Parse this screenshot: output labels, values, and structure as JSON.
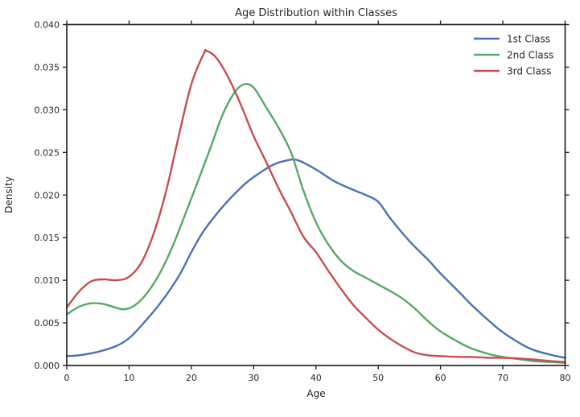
{
  "title": "Age Distribution within Classes",
  "axes": {
    "x_label": "Age",
    "y_label": "Density",
    "x_ticks": [
      "0",
      "10",
      "20",
      "30",
      "40",
      "50",
      "60",
      "70",
      "80"
    ],
    "y_ticks": [
      "0.000",
      "0.005",
      "0.010",
      "0.015",
      "0.020",
      "0.025",
      "0.030",
      "0.035",
      "0.040"
    ]
  },
  "style": {
    "spine_color": "#262626",
    "text_color": "#262626",
    "background": "#ffffff"
  },
  "legend": {
    "entries": [
      "1st Class",
      "2nd Class",
      "3rd Class"
    ]
  },
  "chart_data": {
    "type": "line",
    "title": "Age Distribution within Classes",
    "xlabel": "Age",
    "ylabel": "Density",
    "xlim": [
      0,
      80
    ],
    "ylim": [
      0.0,
      0.04
    ],
    "x_tick_step": 10,
    "y_tick_step": 0.005,
    "grid": false,
    "legend_position": "upper right inside, no frame",
    "curve_kind": "kde-density",
    "series": [
      {
        "name": "1st Class",
        "color": "#4C72B0",
        "points": [
          [
            0,
            0.0011
          ],
          [
            2,
            0.0012
          ],
          [
            5,
            0.0016
          ],
          [
            8,
            0.0023
          ],
          [
            10,
            0.0032
          ],
          [
            12,
            0.0047
          ],
          [
            15,
            0.0073
          ],
          [
            18,
            0.0105
          ],
          [
            20,
            0.0133
          ],
          [
            22,
            0.0158
          ],
          [
            25,
            0.0186
          ],
          [
            28,
            0.0209
          ],
          [
            30,
            0.0221
          ],
          [
            33,
            0.0235
          ],
          [
            35,
            0.024
          ],
          [
            37,
            0.0241
          ],
          [
            40,
            0.023
          ],
          [
            43,
            0.0216
          ],
          [
            46,
            0.0206
          ],
          [
            48,
            0.02
          ],
          [
            50,
            0.0192
          ],
          [
            52,
            0.0172
          ],
          [
            55,
            0.0146
          ],
          [
            58,
            0.0124
          ],
          [
            60,
            0.0108
          ],
          [
            63,
            0.0086
          ],
          [
            65,
            0.0071
          ],
          [
            68,
            0.0051
          ],
          [
            70,
            0.0039
          ],
          [
            73,
            0.0025
          ],
          [
            75,
            0.0018
          ],
          [
            78,
            0.0012
          ],
          [
            80,
            0.0009
          ]
        ]
      },
      {
        "name": "2nd Class",
        "color": "#55A868",
        "points": [
          [
            0,
            0.006
          ],
          [
            2,
            0.0069
          ],
          [
            4,
            0.0073
          ],
          [
            6,
            0.0072
          ],
          [
            9,
            0.0066
          ],
          [
            11,
            0.0071
          ],
          [
            13,
            0.0086
          ],
          [
            15,
            0.0109
          ],
          [
            17,
            0.014
          ],
          [
            20,
            0.0196
          ],
          [
            23,
            0.0254
          ],
          [
            25,
            0.0294
          ],
          [
            27,
            0.0321
          ],
          [
            28.5,
            0.033
          ],
          [
            30,
            0.0326
          ],
          [
            32,
            0.0303
          ],
          [
            34,
            0.0279
          ],
          [
            36,
            0.025
          ],
          [
            38,
            0.0205
          ],
          [
            40,
            0.0168
          ],
          [
            42,
            0.0142
          ],
          [
            44,
            0.0123
          ],
          [
            46,
            0.0111
          ],
          [
            48,
            0.0103
          ],
          [
            50,
            0.0095
          ],
          [
            52,
            0.0087
          ],
          [
            54,
            0.0078
          ],
          [
            56,
            0.0066
          ],
          [
            58,
            0.0052
          ],
          [
            60,
            0.004
          ],
          [
            63,
            0.0027
          ],
          [
            65,
            0.002
          ],
          [
            68,
            0.0013
          ],
          [
            70,
            0.001
          ],
          [
            73,
            0.0007
          ],
          [
            75,
            0.0005
          ],
          [
            78,
            0.0004
          ],
          [
            80,
            0.0003
          ]
        ]
      },
      {
        "name": "3rd Class",
        "color": "#C44E52",
        "points": [
          [
            0,
            0.0068
          ],
          [
            2,
            0.0087
          ],
          [
            4,
            0.0099
          ],
          [
            6,
            0.0101
          ],
          [
            8,
            0.01
          ],
          [
            10,
            0.0104
          ],
          [
            12,
            0.0121
          ],
          [
            14,
            0.0156
          ],
          [
            16,
            0.0206
          ],
          [
            18,
            0.027
          ],
          [
            20,
            0.033
          ],
          [
            22,
            0.0366
          ],
          [
            22.5,
            0.0369
          ],
          [
            24,
            0.0361
          ],
          [
            26,
            0.0337
          ],
          [
            28,
            0.0305
          ],
          [
            30,
            0.0269
          ],
          [
            32,
            0.0239
          ],
          [
            34,
            0.0208
          ],
          [
            36,
            0.018
          ],
          [
            38,
            0.0151
          ],
          [
            40,
            0.0133
          ],
          [
            42,
            0.0111
          ],
          [
            44,
            0.009
          ],
          [
            46,
            0.0071
          ],
          [
            48,
            0.0056
          ],
          [
            50,
            0.0042
          ],
          [
            52,
            0.0031
          ],
          [
            54,
            0.0022
          ],
          [
            56,
            0.0015
          ],
          [
            58,
            0.0012
          ],
          [
            60,
            0.0011
          ],
          [
            63,
            0.001
          ],
          [
            65,
            0.001
          ],
          [
            68,
            0.0009
          ],
          [
            70,
            0.0009
          ],
          [
            73,
            0.0008
          ],
          [
            75,
            0.0007
          ],
          [
            78,
            0.0005
          ],
          [
            80,
            0.0004
          ]
        ]
      }
    ]
  }
}
